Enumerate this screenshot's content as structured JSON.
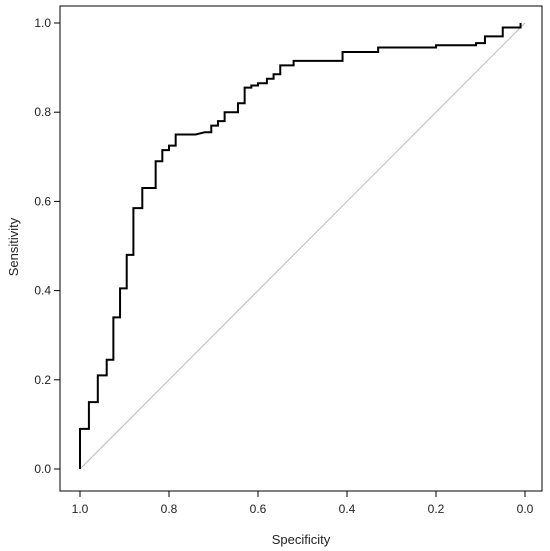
{
  "chart_data": {
    "type": "line",
    "title": "",
    "xlabel": "Specificity",
    "ylabel": "Sensitivity",
    "xlim": [
      1.0,
      0.0
    ],
    "ylim": [
      0.0,
      1.0
    ],
    "x_reversed": true,
    "grid": false,
    "legend": "none",
    "x_ticks": [
      "1.0",
      "0.8",
      "0.6",
      "0.4",
      "0.2",
      "0.0"
    ],
    "y_ticks": [
      "0.0",
      "0.2",
      "0.4",
      "0.6",
      "0.8",
      "1.0"
    ],
    "x_tick_values": [
      1.0,
      0.8,
      0.6,
      0.4,
      0.2,
      0.0
    ],
    "y_tick_values": [
      0.0,
      0.2,
      0.4,
      0.6,
      0.8,
      1.0
    ],
    "series": [
      {
        "color": "#000000",
        "step": true,
        "points": [
          [
            1.0,
            0.0
          ],
          [
            1.0,
            0.09
          ],
          [
            0.98,
            0.09
          ],
          [
            0.98,
            0.15
          ],
          [
            0.96,
            0.15
          ],
          [
            0.96,
            0.21
          ],
          [
            0.94,
            0.21
          ],
          [
            0.94,
            0.245
          ],
          [
            0.925,
            0.245
          ],
          [
            0.925,
            0.34
          ],
          [
            0.91,
            0.34
          ],
          [
            0.91,
            0.405
          ],
          [
            0.895,
            0.405
          ],
          [
            0.895,
            0.48
          ],
          [
            0.88,
            0.48
          ],
          [
            0.88,
            0.585
          ],
          [
            0.86,
            0.585
          ],
          [
            0.86,
            0.63
          ],
          [
            0.83,
            0.63
          ],
          [
            0.83,
            0.69
          ],
          [
            0.815,
            0.69
          ],
          [
            0.815,
            0.715
          ],
          [
            0.8,
            0.715
          ],
          [
            0.8,
            0.725
          ],
          [
            0.785,
            0.725
          ],
          [
            0.785,
            0.75
          ],
          [
            0.74,
            0.75
          ],
          [
            0.72,
            0.755
          ],
          [
            0.705,
            0.755
          ],
          [
            0.705,
            0.77
          ],
          [
            0.69,
            0.77
          ],
          [
            0.69,
            0.78
          ],
          [
            0.675,
            0.78
          ],
          [
            0.675,
            0.8
          ],
          [
            0.645,
            0.8
          ],
          [
            0.645,
            0.82
          ],
          [
            0.63,
            0.82
          ],
          [
            0.63,
            0.855
          ],
          [
            0.615,
            0.855
          ],
          [
            0.615,
            0.86
          ],
          [
            0.6,
            0.86
          ],
          [
            0.6,
            0.865
          ],
          [
            0.58,
            0.865
          ],
          [
            0.58,
            0.875
          ],
          [
            0.565,
            0.875
          ],
          [
            0.565,
            0.885
          ],
          [
            0.55,
            0.885
          ],
          [
            0.55,
            0.905
          ],
          [
            0.52,
            0.905
          ],
          [
            0.52,
            0.915
          ],
          [
            0.41,
            0.915
          ],
          [
            0.41,
            0.935
          ],
          [
            0.33,
            0.935
          ],
          [
            0.33,
            0.945
          ],
          [
            0.2,
            0.945
          ],
          [
            0.2,
            0.95
          ],
          [
            0.11,
            0.95
          ],
          [
            0.11,
            0.955
          ],
          [
            0.09,
            0.955
          ],
          [
            0.09,
            0.97
          ],
          [
            0.05,
            0.97
          ],
          [
            0.05,
            0.99
          ],
          [
            0.01,
            0.99
          ],
          [
            0.01,
            1.0
          ]
        ]
      },
      {
        "color": "#bbbbbb",
        "step": false,
        "points": [
          [
            1.0,
            0.0
          ],
          [
            0.0,
            1.0
          ]
        ]
      }
    ]
  }
}
